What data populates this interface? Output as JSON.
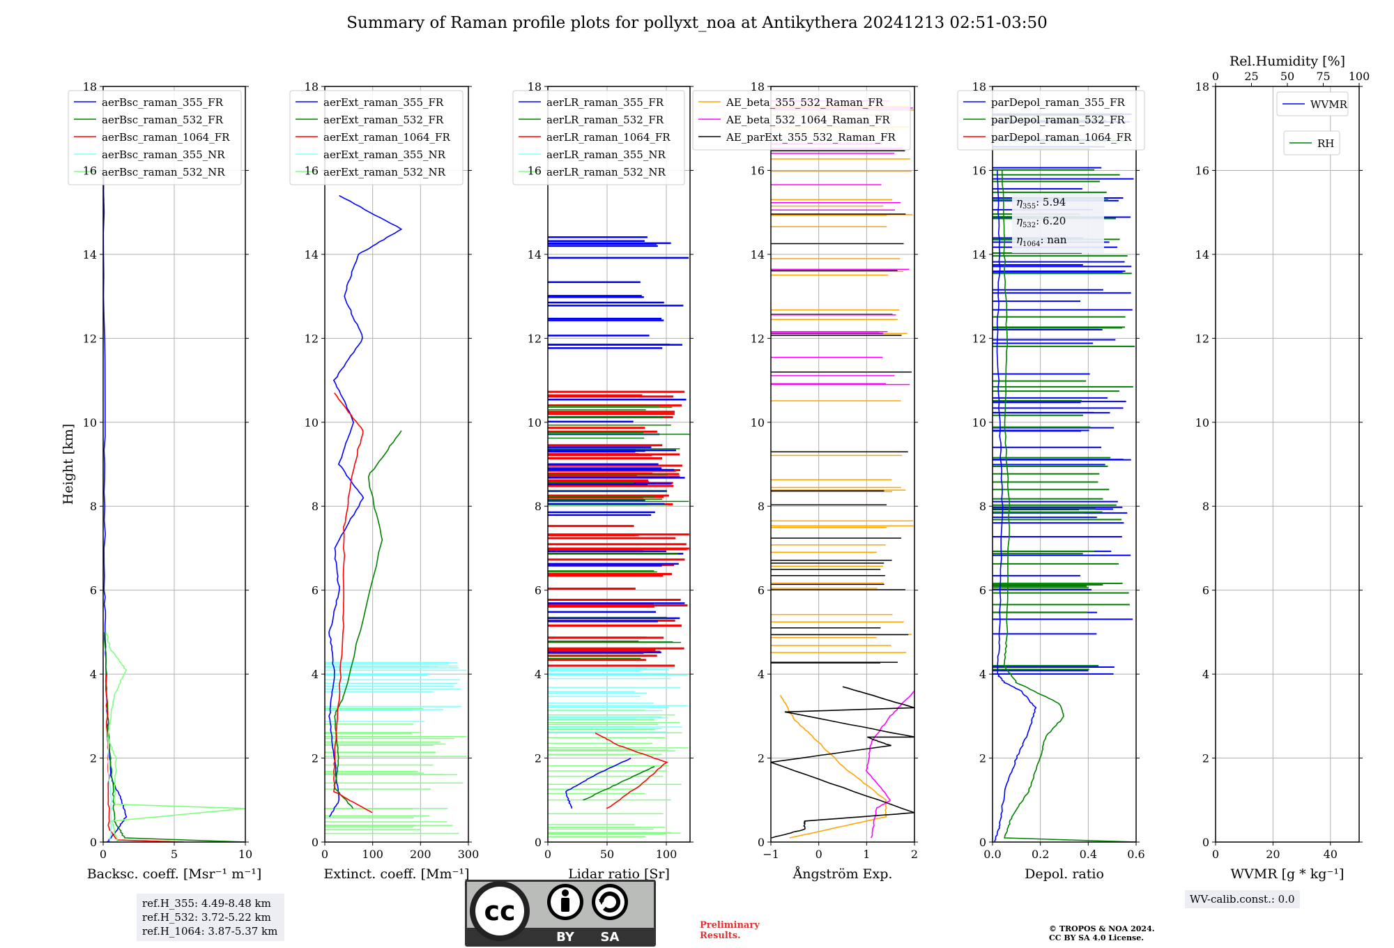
{
  "title": "Summary of Raman profile plots for pollyxt_noa at Antikythera 20241213 02:51-03:50",
  "colors": {
    "c355": "#0000ff",
    "c532": "#008000",
    "c1064": "#ff0000",
    "nr355": "#80ffff",
    "nr532": "#80ff80",
    "orange": "#ffa500",
    "magenta": "#ff00ff",
    "black": "#000000",
    "grid": "#b0b0b0"
  },
  "chart_data": [
    {
      "id": "bsc",
      "type": "line",
      "ylabel": "Height [km]",
      "xlabel": "Backsc. coeff. [Msr⁻¹ m⁻¹]",
      "xlim": [
        0,
        10
      ],
      "ylim": [
        0,
        18
      ],
      "xticks": [
        "0",
        "5",
        "10"
      ],
      "legend": [
        "aerBsc_raman_355_FR",
        "aerBsc_raman_532_FR",
        "aerBsc_raman_1064_FR",
        "aerBsc_raman_355_NR",
        "aerBsc_raman_532_NR"
      ],
      "series": [
        {
          "name": "aerBsc_raman_355_FR",
          "color": "c355",
          "points": [
            [
              0.3,
              0
            ],
            [
              1.0,
              0.3
            ],
            [
              1.6,
              0.6
            ],
            [
              1.3,
              1.0
            ],
            [
              0.6,
              1.5
            ],
            [
              0.3,
              2.5
            ],
            [
              0.2,
              4
            ],
            [
              0.1,
              6
            ],
            [
              0.1,
              10
            ],
            [
              0.05,
              16
            ]
          ]
        },
        {
          "name": "aerBsc_raman_532_FR",
          "color": "c532",
          "points": [
            [
              10,
              0
            ],
            [
              1.5,
              0.1
            ],
            [
              0.8,
              0.5
            ],
            [
              0.7,
              1.2
            ],
            [
              0.5,
              2
            ],
            [
              0.3,
              3
            ],
            [
              0.1,
              5
            ]
          ]
        },
        {
          "name": "aerBsc_raman_1064_FR",
          "color": "c1064",
          "points": [
            [
              5.7,
              0
            ],
            [
              1.0,
              0.05
            ],
            [
              0.4,
              0.3
            ],
            [
              0.4,
              1.5
            ],
            [
              0.3,
              2.5
            ],
            [
              0.2,
              4
            ]
          ]
        },
        {
          "name": "aerBsc_raman_355_NR",
          "color": "nr355",
          "points": [
            [
              0.5,
              0
            ],
            [
              0.6,
              0.8
            ],
            [
              0.4,
              1.5
            ],
            [
              0.3,
              2.5
            ]
          ]
        },
        {
          "name": "aerBsc_raman_532_NR",
          "color": "nr532",
          "points": [
            [
              1.0,
              0
            ],
            [
              0.6,
              0.5
            ],
            [
              10,
              0.8
            ],
            [
              0.8,
              0.9
            ],
            [
              0.9,
              2.0
            ],
            [
              0.3,
              2.5
            ],
            [
              0.8,
              3.5
            ],
            [
              1.6,
              4.1
            ],
            [
              0.5,
              4.6
            ],
            [
              0.2,
              5
            ]
          ]
        }
      ]
    },
    {
      "id": "ext",
      "type": "line",
      "xlabel": "Extinct. coeff. [Mm⁻¹]",
      "xlim": [
        0,
        300
      ],
      "ylim": [
        0,
        18
      ],
      "xticks": [
        "0",
        "100",
        "200",
        "300"
      ],
      "legend": [
        "aerExt_raman_355_FR",
        "aerExt_raman_532_FR",
        "aerExt_raman_1064_FR",
        "aerExt_raman_355_NR",
        "aerExt_raman_532_NR"
      ],
      "series": [
        {
          "name": "aerExt_raman_355_FR",
          "color": "c355",
          "points": [
            [
              10,
              0.6
            ],
            [
              30,
              1.0
            ],
            [
              20,
              2.0
            ],
            [
              10,
              3
            ],
            [
              20,
              4
            ],
            [
              10,
              5
            ],
            [
              30,
              6
            ],
            [
              20,
              7
            ],
            [
              80,
              8.2
            ],
            [
              30,
              9
            ],
            [
              60,
              10
            ],
            [
              20,
              11
            ],
            [
              80,
              12
            ],
            [
              40,
              13
            ],
            [
              70,
              14
            ],
            [
              160,
              14.6
            ],
            [
              30,
              15.4
            ]
          ]
        },
        {
          "name": "aerExt_raman_532_FR",
          "color": "c532",
          "points": [
            [
              60,
              0.8
            ],
            [
              20,
              1.3
            ],
            [
              30,
              2.0
            ],
            [
              20,
              3
            ],
            [
              40,
              3.5
            ],
            [
              120,
              7.2
            ],
            [
              90,
              8.7
            ],
            [
              160,
              9.8
            ]
          ]
        },
        {
          "name": "aerExt_raman_1064_FR",
          "color": "c1064",
          "points": [
            [
              100,
              0.7
            ],
            [
              20,
              1.2
            ],
            [
              20,
              2
            ],
            [
              30,
              3.4
            ],
            [
              40,
              5.5
            ],
            [
              40,
              7.5
            ],
            [
              60,
              8.9
            ],
            [
              80,
              9.8
            ],
            [
              20,
              10.7
            ]
          ]
        }
      ]
    },
    {
      "id": "lr",
      "type": "line",
      "xlabel": "Lidar ratio [Sr]",
      "xlim": [
        0,
        120
      ],
      "ylim": [
        0,
        18
      ],
      "xticks": [
        "0",
        "50",
        "100"
      ],
      "legend": [
        "aerLR_raman_355_FR",
        "aerLR_raman_532_FR",
        "aerLR_raman_1064_FR",
        "aerLR_raman_355_NR",
        "aerLR_raman_532_NR"
      ],
      "series": [
        {
          "name": "aerLR_raman_355_FR",
          "color": "c355",
          "points": [
            [
              20,
              0.8
            ],
            [
              15,
              1.2
            ],
            [
              40,
              1.6
            ],
            [
              70,
              2.0
            ]
          ]
        },
        {
          "name": "aerLR_raman_532_FR",
          "color": "c532",
          "points": [
            [
              30,
              1.0
            ],
            [
              60,
              1.4
            ],
            [
              90,
              1.8
            ]
          ]
        },
        {
          "name": "aerLR_raman_1064_FR",
          "color": "c1064",
          "points": [
            [
              50,
              0.8
            ],
            [
              80,
              1.4
            ],
            [
              100,
              1.9
            ],
            [
              60,
              2.3
            ],
            [
              40,
              2.6
            ]
          ]
        }
      ]
    },
    {
      "id": "ae",
      "type": "line",
      "xlabel": "Ångström Exp.",
      "xlim": [
        -1,
        2
      ],
      "ylim": [
        0,
        18
      ],
      "xticks": [
        "−1",
        "0",
        "1",
        "2"
      ],
      "legend": [
        "AE_beta_355_532_Raman_FR",
        "AE_beta_532_1064_Raman_FR",
        "AE_parExt_355_532_Raman_FR"
      ],
      "series": [
        {
          "name": "AE_beta_355_532_Raman_FR",
          "color": "orange",
          "points": [
            [
              -0.6,
              0.1
            ],
            [
              1.4,
              0.6
            ],
            [
              1.4,
              1.0
            ],
            [
              0.5,
              1.8
            ],
            [
              -0.2,
              2.6
            ],
            [
              -0.5,
              2.9
            ],
            [
              -0.8,
              3.5
            ]
          ]
        },
        {
          "name": "AE_beta_532_1064_Raman_FR",
          "color": "magenta",
          "points": [
            [
              1.1,
              0.1
            ],
            [
              1.2,
              0.8
            ],
            [
              1.5,
              1.0
            ],
            [
              1.0,
              1.7
            ],
            [
              1.1,
              2.4
            ],
            [
              1.5,
              3.0
            ],
            [
              2.0,
              3.6
            ]
          ]
        },
        {
          "name": "AE_parExt_355_532_Raman_FR",
          "color": "black",
          "points": [
            [
              -1,
              0.1
            ],
            [
              -0.3,
              0.3
            ],
            [
              -0.3,
              0.5
            ],
            [
              2.0,
              0.7
            ],
            [
              -1,
              1.9
            ],
            [
              1.5,
              2.3
            ],
            [
              1.0,
              2.5
            ],
            [
              2.0,
              2.5
            ],
            [
              -0.7,
              3.1
            ],
            [
              2.0,
              3.2
            ],
            [
              0.5,
              3.7
            ]
          ]
        }
      ]
    },
    {
      "id": "depol",
      "type": "line",
      "xlabel": "Depol. ratio",
      "xlim": [
        0,
        0.6
      ],
      "ylim": [
        0,
        18
      ],
      "xticks": [
        "0.0",
        "0.2",
        "0.4",
        "0.6"
      ],
      "legend": [
        "parDepol_raman_355_FR",
        "parDepol_raman_532_FR",
        "parDepol_raman_1064_FR"
      ],
      "annot": {
        "eta355": "5.94",
        "eta532": "6.20",
        "eta1064": "nan"
      },
      "series": [
        {
          "name": "parDepol_raman_355_FR",
          "color": "c355",
          "points": [
            [
              0.01,
              0
            ],
            [
              0.03,
              0.4
            ],
            [
              0.05,
              1.2
            ],
            [
              0.1,
              2.0
            ],
            [
              0.15,
              2.6
            ],
            [
              0.18,
              3.2
            ],
            [
              0.12,
              3.6
            ],
            [
              0.05,
              3.8
            ],
            [
              0.02,
              4.0
            ],
            [
              0.03,
              5
            ],
            [
              0.04,
              8
            ],
            [
              0.03,
              10
            ],
            [
              0.02,
              12
            ],
            [
              0.03,
              14
            ],
            [
              0.02,
              16
            ]
          ]
        },
        {
          "name": "parDepol_raman_532_FR",
          "color": "c532",
          "points": [
            [
              0.6,
              0
            ],
            [
              0.05,
              0.1
            ],
            [
              0.08,
              0.6
            ],
            [
              0.15,
              1.2
            ],
            [
              0.2,
              2.0
            ],
            [
              0.22,
              2.5
            ],
            [
              0.3,
              3.0
            ],
            [
              0.28,
              3.3
            ],
            [
              0.1,
              3.8
            ],
            [
              0.05,
              4.2
            ],
            [
              0.06,
              5
            ],
            [
              0.07,
              8
            ],
            [
              0.05,
              10
            ],
            [
              0.06,
              12
            ],
            [
              0.05,
              14
            ],
            [
              0.04,
              16
            ]
          ]
        }
      ]
    },
    {
      "id": "wv",
      "type": "line",
      "xlabel": "WVMR [g * kg⁻¹]",
      "xlim": [
        0,
        50
      ],
      "ylim": [
        0,
        18
      ],
      "xticks": [
        "0",
        "20",
        "40"
      ],
      "top_xlabel": "Rel.Humidity [%]",
      "top_xticks": [
        "0",
        "25",
        "50",
        "75",
        "100"
      ],
      "legend": [
        "WVMR",
        "RH"
      ],
      "series": []
    }
  ],
  "yticks": [
    "0",
    "2",
    "4",
    "6",
    "8",
    "10",
    "12",
    "14",
    "16",
    "18"
  ],
  "info": {
    "ref_355": "ref.H_355: 4.49-8.48 km",
    "ref_532": "ref.H_532: 3.72-5.22 km",
    "ref_1064": "ref.H_1064: 3.87-5.37 km",
    "wv_calib": "WV-calib.const.: 0.0",
    "prelim_1": "Preliminary",
    "prelim_2": "Results.",
    "copyright_1": "© TROPOS & NOA 2024.",
    "copyright_2": "CC BY SA 4.0 License.",
    "cc": "cc",
    "by": "BY",
    "sa": "SA"
  }
}
